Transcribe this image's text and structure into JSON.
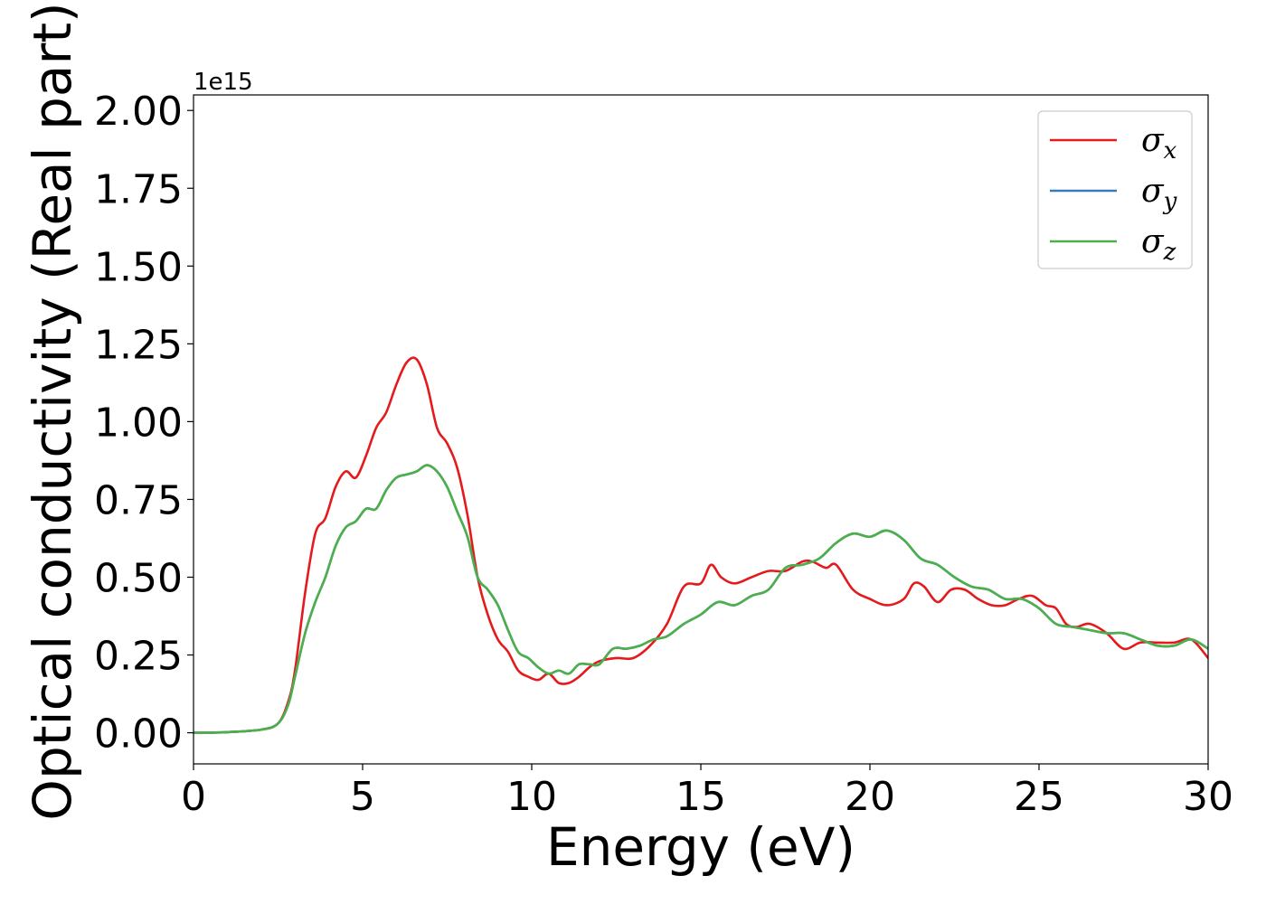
{
  "chart_data": {
    "type": "line",
    "xlabel": "Energy (eV)",
    "ylabel": "Optical conductivity (Real part)",
    "offset_text": "1e15",
    "xlim": [
      0,
      30
    ],
    "ylim": [
      -0.1,
      2.05
    ],
    "y_scale_factor": 1000000000000000.0,
    "xticks": [
      0,
      5,
      10,
      15,
      20,
      25,
      30
    ],
    "xtick_labels": [
      "0",
      "5",
      "10",
      "15",
      "20",
      "25",
      "30"
    ],
    "yticks": [
      0,
      0.25,
      0.5,
      0.75,
      1.0,
      1.25,
      1.5,
      1.75,
      2.0
    ],
    "ytick_labels": [
      "0.00",
      "0.25",
      "0.50",
      "0.75",
      "1.00",
      "1.25",
      "1.50",
      "1.75",
      "2.00"
    ],
    "grid": false,
    "legend_position": "top-right",
    "series": [
      {
        "name": "σ",
        "subscript": "x",
        "color": "#e41a1c",
        "x": [
          0,
          1,
          2,
          2.5,
          2.8,
          3.0,
          3.3,
          3.6,
          3.9,
          4.2,
          4.5,
          4.8,
          5.1,
          5.4,
          5.7,
          6.0,
          6.3,
          6.6,
          6.9,
          7.2,
          7.5,
          7.8,
          8.1,
          8.4,
          8.7,
          9.0,
          9.3,
          9.6,
          9.9,
          10.2,
          10.5,
          10.8,
          11.1,
          11.4,
          11.7,
          12.0,
          12.5,
          13.0,
          13.5,
          14.0,
          14.5,
          15.0,
          15.3,
          15.6,
          16.0,
          16.5,
          17.0,
          17.5,
          18.0,
          18.3,
          18.7,
          19.0,
          19.5,
          20.0,
          20.5,
          21.0,
          21.3,
          21.6,
          22.0,
          22.4,
          22.8,
          23.2,
          23.6,
          24.0,
          24.4,
          24.8,
          25.2,
          25.5,
          25.8,
          26.1,
          26.5,
          27.0,
          27.5,
          28.0,
          28.5,
          29.0,
          29.5,
          30.0
        ],
        "y": [
          0,
          0.002,
          0.01,
          0.03,
          0.1,
          0.2,
          0.45,
          0.64,
          0.69,
          0.79,
          0.84,
          0.82,
          0.89,
          0.98,
          1.03,
          1.12,
          1.19,
          1.2,
          1.12,
          0.98,
          0.93,
          0.85,
          0.7,
          0.5,
          0.38,
          0.3,
          0.26,
          0.2,
          0.18,
          0.17,
          0.19,
          0.16,
          0.16,
          0.18,
          0.21,
          0.23,
          0.24,
          0.24,
          0.28,
          0.35,
          0.47,
          0.48,
          0.54,
          0.5,
          0.48,
          0.5,
          0.52,
          0.52,
          0.55,
          0.55,
          0.53,
          0.54,
          0.46,
          0.43,
          0.41,
          0.43,
          0.48,
          0.47,
          0.42,
          0.46,
          0.46,
          0.43,
          0.41,
          0.41,
          0.43,
          0.44,
          0.41,
          0.4,
          0.35,
          0.34,
          0.35,
          0.32,
          0.27,
          0.29,
          0.29,
          0.29,
          0.3,
          0.24
        ]
      },
      {
        "name": "σ",
        "subscript": "y",
        "color": "#377eb8",
        "x": [
          0,
          1,
          2,
          2.5,
          2.8,
          3.0,
          3.3,
          3.6,
          3.9,
          4.2,
          4.5,
          4.8,
          5.1,
          5.4,
          5.7,
          6.0,
          6.3,
          6.6,
          6.9,
          7.2,
          7.5,
          7.8,
          8.1,
          8.4,
          8.7,
          9.0,
          9.3,
          9.6,
          9.9,
          10.2,
          10.5,
          10.8,
          11.1,
          11.4,
          11.7,
          12.0,
          12.4,
          12.8,
          13.2,
          13.6,
          14.0,
          14.5,
          15.0,
          15.5,
          16.0,
          16.5,
          17.0,
          17.5,
          18.0,
          18.5,
          19.0,
          19.5,
          20.0,
          20.5,
          21.0,
          21.5,
          22.0,
          22.5,
          23.0,
          23.5,
          24.0,
          24.5,
          25.0,
          25.5,
          26.0,
          26.5,
          27.0,
          27.5,
          28.0,
          28.5,
          29.0,
          29.5,
          30.0
        ],
        "y": [
          0,
          0.002,
          0.01,
          0.03,
          0.09,
          0.18,
          0.32,
          0.42,
          0.5,
          0.6,
          0.66,
          0.68,
          0.72,
          0.72,
          0.78,
          0.82,
          0.83,
          0.84,
          0.86,
          0.84,
          0.79,
          0.71,
          0.63,
          0.5,
          0.46,
          0.41,
          0.33,
          0.26,
          0.24,
          0.21,
          0.19,
          0.2,
          0.19,
          0.22,
          0.22,
          0.22,
          0.27,
          0.27,
          0.28,
          0.3,
          0.31,
          0.35,
          0.38,
          0.42,
          0.41,
          0.44,
          0.46,
          0.53,
          0.54,
          0.56,
          0.61,
          0.64,
          0.63,
          0.65,
          0.62,
          0.56,
          0.54,
          0.5,
          0.47,
          0.46,
          0.43,
          0.43,
          0.4,
          0.35,
          0.34,
          0.33,
          0.32,
          0.32,
          0.3,
          0.28,
          0.28,
          0.3,
          0.27
        ]
      },
      {
        "name": "σ",
        "subscript": "z",
        "color": "#4daf4a",
        "x": [
          0,
          1,
          2,
          2.5,
          2.8,
          3.0,
          3.3,
          3.6,
          3.9,
          4.2,
          4.5,
          4.8,
          5.1,
          5.4,
          5.7,
          6.0,
          6.3,
          6.6,
          6.9,
          7.2,
          7.5,
          7.8,
          8.1,
          8.4,
          8.7,
          9.0,
          9.3,
          9.6,
          9.9,
          10.2,
          10.5,
          10.8,
          11.1,
          11.4,
          11.7,
          12.0,
          12.4,
          12.8,
          13.2,
          13.6,
          14.0,
          14.5,
          15.0,
          15.5,
          16.0,
          16.5,
          17.0,
          17.5,
          18.0,
          18.5,
          19.0,
          19.5,
          20.0,
          20.5,
          21.0,
          21.5,
          22.0,
          22.5,
          23.0,
          23.5,
          24.0,
          24.5,
          25.0,
          25.5,
          26.0,
          26.5,
          27.0,
          27.5,
          28.0,
          28.5,
          29.0,
          29.5,
          30.0
        ],
        "y": [
          0,
          0.002,
          0.01,
          0.03,
          0.09,
          0.18,
          0.32,
          0.42,
          0.5,
          0.6,
          0.66,
          0.68,
          0.72,
          0.72,
          0.78,
          0.82,
          0.83,
          0.84,
          0.86,
          0.84,
          0.79,
          0.71,
          0.63,
          0.5,
          0.46,
          0.41,
          0.33,
          0.26,
          0.24,
          0.21,
          0.19,
          0.2,
          0.19,
          0.22,
          0.22,
          0.22,
          0.27,
          0.27,
          0.28,
          0.3,
          0.31,
          0.35,
          0.38,
          0.42,
          0.41,
          0.44,
          0.46,
          0.53,
          0.54,
          0.56,
          0.61,
          0.64,
          0.63,
          0.65,
          0.62,
          0.56,
          0.54,
          0.5,
          0.47,
          0.46,
          0.43,
          0.43,
          0.4,
          0.35,
          0.34,
          0.33,
          0.32,
          0.32,
          0.3,
          0.28,
          0.28,
          0.3,
          0.27
        ]
      }
    ]
  }
}
